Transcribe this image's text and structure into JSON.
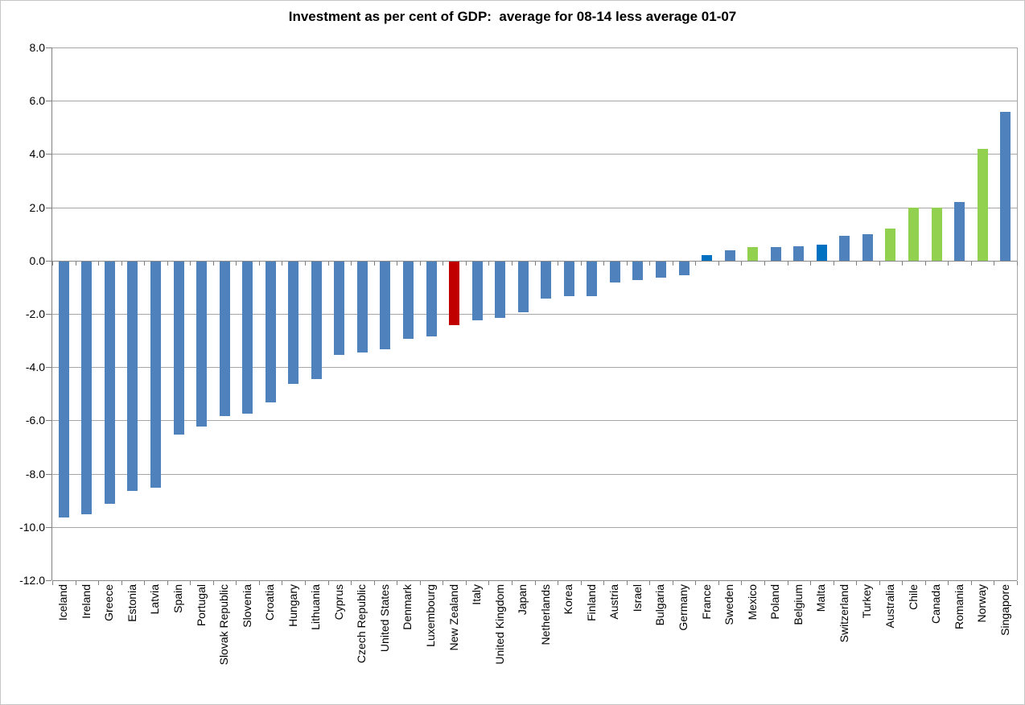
{
  "title": "Investment as per cent of GDP:  average for 08-14 less average 01-07",
  "chart_data": {
    "type": "bar",
    "title": "Investment as per cent of GDP:  average for 08-14 less average 01-07",
    "xlabel": "",
    "ylabel": "",
    "ylim": [
      -12,
      8
    ],
    "ytick_interval": 2,
    "ytick_labels": [
      "8.0",
      "6.0",
      "4.0",
      "2.0",
      "0.0",
      "-2.0",
      "-4.0",
      "-6.0",
      "-8.0",
      "-10.0",
      "-12.0"
    ],
    "grid": true,
    "legend": false,
    "palette": {
      "steel_blue": "#4F81BD",
      "red": "#C00000",
      "bright_blue": "#0070C0",
      "green": "#92D050"
    },
    "axis_color": "#808080",
    "gridline_color": "#A6A6A6",
    "points": [
      {
        "label": "Iceland",
        "value": -9.6,
        "color": "steel_blue"
      },
      {
        "label": "Ireland",
        "value": -9.5,
        "color": "steel_blue"
      },
      {
        "label": "Greece",
        "value": -9.1,
        "color": "steel_blue"
      },
      {
        "label": "Estonia",
        "value": -8.6,
        "color": "steel_blue"
      },
      {
        "label": "Latvia",
        "value": -8.5,
        "color": "steel_blue"
      },
      {
        "label": "Spain",
        "value": -6.5,
        "color": "steel_blue"
      },
      {
        "label": "Portugal",
        "value": -6.2,
        "color": "steel_blue"
      },
      {
        "label": "Slovak Republic",
        "value": -5.8,
        "color": "steel_blue"
      },
      {
        "label": "Slovenia",
        "value": -5.7,
        "color": "steel_blue"
      },
      {
        "label": "Croatia",
        "value": -5.3,
        "color": "steel_blue"
      },
      {
        "label": "Hungary",
        "value": -4.6,
        "color": "steel_blue"
      },
      {
        "label": "Lithuania",
        "value": -4.4,
        "color": "steel_blue"
      },
      {
        "label": "Cyprus",
        "value": -3.5,
        "color": "steel_blue"
      },
      {
        "label": "Czech Republic",
        "value": -3.4,
        "color": "steel_blue"
      },
      {
        "label": "United States",
        "value": -3.3,
        "color": "steel_blue"
      },
      {
        "label": "Denmark",
        "value": -2.9,
        "color": "steel_blue"
      },
      {
        "label": "Luxembourg",
        "value": -2.8,
        "color": "steel_blue"
      },
      {
        "label": "New Zealand",
        "value": -2.4,
        "color": "red"
      },
      {
        "label": "Italy",
        "value": -2.2,
        "color": "steel_blue"
      },
      {
        "label": "United Kingdom",
        "value": -2.1,
        "color": "steel_blue"
      },
      {
        "label": "Japan",
        "value": -1.9,
        "color": "steel_blue"
      },
      {
        "label": "Netherlands",
        "value": -1.4,
        "color": "steel_blue"
      },
      {
        "label": "Korea",
        "value": -1.3,
        "color": "steel_blue"
      },
      {
        "label": "Finland",
        "value": -1.3,
        "color": "steel_blue"
      },
      {
        "label": "Austria",
        "value": -0.8,
        "color": "steel_blue"
      },
      {
        "label": "Israel",
        "value": -0.7,
        "color": "steel_blue"
      },
      {
        "label": "Bulgaria",
        "value": -0.6,
        "color": "steel_blue"
      },
      {
        "label": "Germany",
        "value": -0.5,
        "color": "steel_blue"
      },
      {
        "label": "France",
        "value": 0.2,
        "color": "bright_blue"
      },
      {
        "label": "Sweden",
        "value": 0.4,
        "color": "steel_blue"
      },
      {
        "label": "Mexico",
        "value": 0.5,
        "color": "green"
      },
      {
        "label": "Poland",
        "value": 0.5,
        "color": "steel_blue"
      },
      {
        "label": "Belgium",
        "value": 0.55,
        "color": "steel_blue"
      },
      {
        "label": "Malta",
        "value": 0.6,
        "color": "bright_blue"
      },
      {
        "label": "Switzerland",
        "value": 0.95,
        "color": "steel_blue"
      },
      {
        "label": "Turkey",
        "value": 1.0,
        "color": "steel_blue"
      },
      {
        "label": "Australia",
        "value": 1.2,
        "color": "green"
      },
      {
        "label": "Chile",
        "value": 2.0,
        "color": "green"
      },
      {
        "label": "Canada",
        "value": 2.0,
        "color": "green"
      },
      {
        "label": "Romania",
        "value": 2.2,
        "color": "steel_blue"
      },
      {
        "label": "Norway",
        "value": 4.2,
        "color": "green"
      },
      {
        "label": "Singapore",
        "value": 5.6,
        "color": "steel_blue"
      }
    ]
  }
}
